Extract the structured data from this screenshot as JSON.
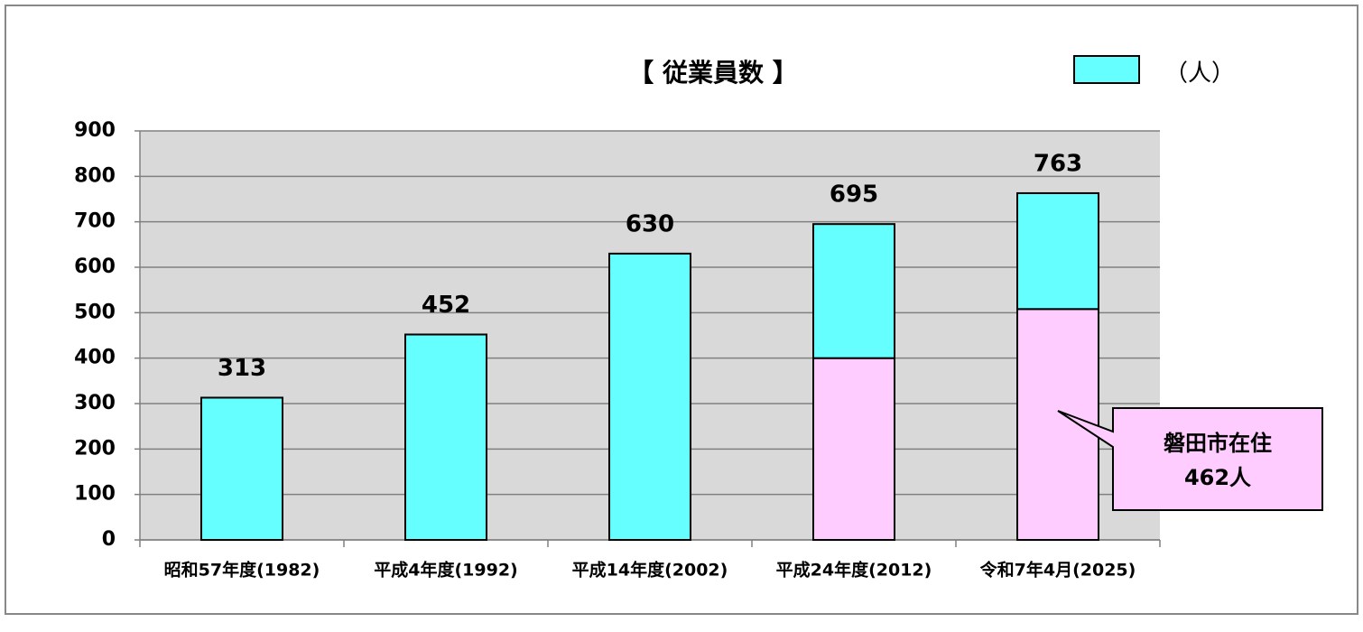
{
  "chart_data": {
    "type": "stacked-bar",
    "title": "【 従業員数 】",
    "categories": [
      "昭和57年度(1982)",
      "平成4年度(1992)",
      "平成14年度(2002)",
      "平成24年度(2012)",
      "令和7年4月(2025)"
    ],
    "series": [
      {
        "color": "#ffccff",
        "values": [
          null,
          null,
          null,
          400,
          508
        ]
      },
      {
        "name": "（人）",
        "color": "#66ffff",
        "values": [
          313,
          452,
          630,
          295,
          255
        ]
      }
    ],
    "totals": [
      313,
      452,
      630,
      695,
      763
    ],
    "annotation": [
      "磐田市在住",
      "462人"
    ],
    "ylim": [
      0,
      900
    ],
    "yticks": [
      0,
      100,
      200,
      300,
      400,
      500,
      600,
      700,
      800,
      900
    ],
    "grid": true
  }
}
